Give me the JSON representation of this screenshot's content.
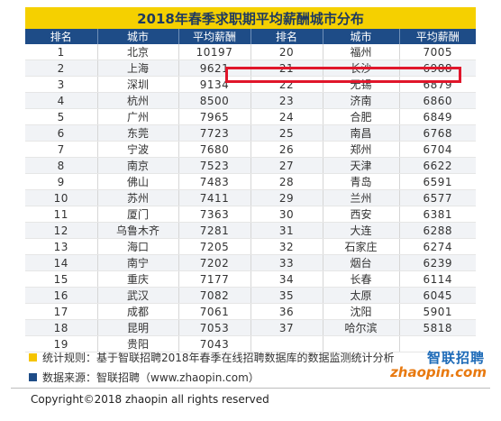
{
  "title": "2018年春季求职期平均薪酬城市分布",
  "columns": [
    "排名",
    "城市",
    "平均薪酬",
    "排名",
    "城市",
    "平均薪酬"
  ],
  "rows": [
    {
      "rank_l": "1",
      "city_l": "北京",
      "pay_l": "10197",
      "rank_r": "20",
      "city_r": "福州",
      "pay_r": "7005"
    },
    {
      "rank_l": "2",
      "city_l": "上海",
      "pay_l": "9621",
      "rank_r": "21",
      "city_r": "长沙",
      "pay_r": "6988"
    },
    {
      "rank_l": "3",
      "city_l": "深圳",
      "pay_l": "9134",
      "rank_r": "22",
      "city_r": "无锡",
      "pay_r": "6879"
    },
    {
      "rank_l": "4",
      "city_l": "杭州",
      "pay_l": "8500",
      "rank_r": "23",
      "city_r": "济南",
      "pay_r": "6860"
    },
    {
      "rank_l": "5",
      "city_l": "广州",
      "pay_l": "7965",
      "rank_r": "24",
      "city_r": "合肥",
      "pay_r": "6849"
    },
    {
      "rank_l": "6",
      "city_l": "东莞",
      "pay_l": "7723",
      "rank_r": "25",
      "city_r": "南昌",
      "pay_r": "6768"
    },
    {
      "rank_l": "7",
      "city_l": "宁波",
      "pay_l": "7680",
      "rank_r": "26",
      "city_r": "郑州",
      "pay_r": "6704"
    },
    {
      "rank_l": "8",
      "city_l": "南京",
      "pay_l": "7523",
      "rank_r": "27",
      "city_r": "天津",
      "pay_r": "6622"
    },
    {
      "rank_l": "9",
      "city_l": "佛山",
      "pay_l": "7483",
      "rank_r": "28",
      "city_r": "青岛",
      "pay_r": "6591"
    },
    {
      "rank_l": "10",
      "city_l": "苏州",
      "pay_l": "7411",
      "rank_r": "29",
      "city_r": "兰州",
      "pay_r": "6577"
    },
    {
      "rank_l": "11",
      "city_l": "厦门",
      "pay_l": "7363",
      "rank_r": "30",
      "city_r": "西安",
      "pay_r": "6381"
    },
    {
      "rank_l": "12",
      "city_l": "乌鲁木齐",
      "pay_l": "7281",
      "rank_r": "31",
      "city_r": "大连",
      "pay_r": "6288"
    },
    {
      "rank_l": "13",
      "city_l": "海口",
      "pay_l": "7205",
      "rank_r": "32",
      "city_r": "石家庄",
      "pay_r": "6274"
    },
    {
      "rank_l": "14",
      "city_l": "南宁",
      "pay_l": "7202",
      "rank_r": "33",
      "city_r": "烟台",
      "pay_r": "6239"
    },
    {
      "rank_l": "15",
      "city_l": "重庆",
      "pay_l": "7177",
      "rank_r": "34",
      "city_r": "长春",
      "pay_r": "6114"
    },
    {
      "rank_l": "16",
      "city_l": "武汉",
      "pay_l": "7082",
      "rank_r": "35",
      "city_r": "太原",
      "pay_r": "6045"
    },
    {
      "rank_l": "17",
      "city_l": "成都",
      "pay_l": "7061",
      "rank_r": "36",
      "city_r": "沈阳",
      "pay_r": "5901"
    },
    {
      "rank_l": "18",
      "city_l": "昆明",
      "pay_l": "7053",
      "rank_r": "37",
      "city_r": "哈尔滨",
      "pay_r": "5818"
    },
    {
      "rank_l": "19",
      "city_l": "贵阳",
      "pay_l": "7043",
      "rank_r": "",
      "city_r": "",
      "pay_r": ""
    }
  ],
  "highlight_color": "#e0162b",
  "notes": [
    {
      "text": "统计规则：基于智联招聘2018年春季在线招聘数据库的数据监测统计分析",
      "color": "#f5c400"
    },
    {
      "text": "数据来源：智联招聘（www.zhaopin.com）",
      "color": "#1e4c87"
    }
  ],
  "logo": {
    "cn": "智联招聘",
    "en": "zhaopin.com"
  },
  "copyright": "Copyright©2018 zhaopin all rights reserved",
  "colors": {
    "title_bg": "#f5d000",
    "header_bg": "#1e4c87",
    "title_text": "#1f3a5f"
  }
}
